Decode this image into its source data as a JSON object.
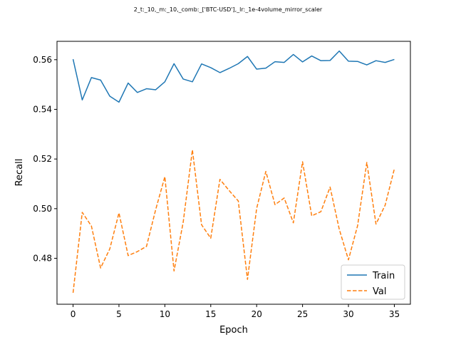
{
  "chart_data": {
    "type": "line",
    "title": "2_t:_10,_m:_10,_comb:_['BTC-USD'],_lr:_1e-4volume_mirror_scaler",
    "xlabel": "Epoch",
    "ylabel": "Recall",
    "xlim": [
      -1.75,
      36.75
    ],
    "ylim": [
      0.4615,
      0.5674
    ],
    "xticks": [
      0,
      5,
      10,
      15,
      20,
      25,
      30,
      35
    ],
    "yticks": [
      0.48,
      0.5,
      0.52,
      0.54,
      0.56
    ],
    "ytick_labels": [
      "0.48",
      "0.50",
      "0.52",
      "0.54",
      "0.56"
    ],
    "grid": false,
    "legend_position": "lower-right",
    "x": [
      0,
      1,
      2,
      3,
      4,
      5,
      6,
      7,
      8,
      9,
      10,
      11,
      12,
      13,
      14,
      15,
      16,
      17,
      18,
      19,
      20,
      21,
      22,
      23,
      24,
      25,
      26,
      27,
      28,
      29,
      30,
      31,
      32,
      33,
      34,
      35
    ],
    "series": [
      {
        "name": "Train",
        "color": "#1f77b4",
        "style": "solid",
        "values": [
          0.5602,
          0.5438,
          0.5528,
          0.5518,
          0.5453,
          0.5429,
          0.5506,
          0.5468,
          0.5483,
          0.5479,
          0.5511,
          0.5584,
          0.5522,
          0.5511,
          0.5583,
          0.5568,
          0.5548,
          0.5565,
          0.5584,
          0.5613,
          0.5562,
          0.5566,
          0.5592,
          0.5589,
          0.5621,
          0.5591,
          0.5615,
          0.5596,
          0.5597,
          0.5635,
          0.5594,
          0.5593,
          0.5579,
          0.5596,
          0.5589,
          0.5601
        ]
      },
      {
        "name": "Val",
        "color": "#ff7f0e",
        "style": "dashed",
        "values": [
          0.4661,
          0.4985,
          0.493,
          0.4761,
          0.4838,
          0.4983,
          0.4811,
          0.4827,
          0.4848,
          0.4996,
          0.5129,
          0.4749,
          0.4946,
          0.5237,
          0.4935,
          0.4881,
          0.5118,
          0.5073,
          0.5031,
          0.4715,
          0.5001,
          0.515,
          0.5016,
          0.5043,
          0.4943,
          0.5189,
          0.4971,
          0.4988,
          0.5087,
          0.4917,
          0.4794,
          0.4932,
          0.5186,
          0.4938,
          0.5014,
          0.516
        ]
      }
    ]
  }
}
